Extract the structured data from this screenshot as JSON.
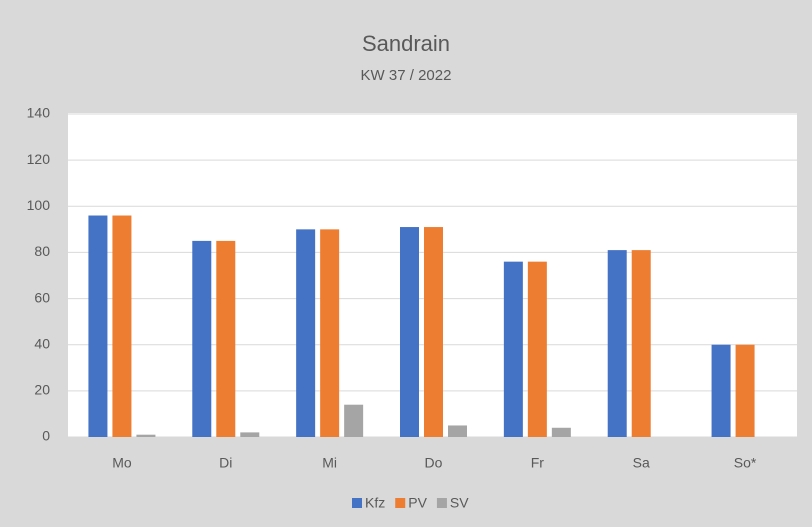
{
  "chart_data": {
    "type": "bar",
    "title": "Sandrain",
    "subtitle": "KW 37 / 2022",
    "categories": [
      "Mo",
      "Di",
      "Mi",
      "Do",
      "Fr",
      "Sa",
      "So*"
    ],
    "series": [
      {
        "name": "Kfz",
        "color": "#4472c4",
        "values": [
          96,
          85,
          90,
          91,
          76,
          81,
          40
        ]
      },
      {
        "name": "PV",
        "color": "#ed7d31",
        "values": [
          96,
          85,
          90,
          91,
          76,
          81,
          40
        ]
      },
      {
        "name": "SV",
        "color": "#a5a5a5",
        "values": [
          1,
          2,
          14,
          5,
          4,
          0,
          0
        ]
      }
    ],
    "ylim": [
      0,
      140
    ],
    "yticks": [
      0,
      20,
      40,
      60,
      80,
      100,
      120,
      140
    ],
    "grid": true,
    "legend": "bottom"
  }
}
